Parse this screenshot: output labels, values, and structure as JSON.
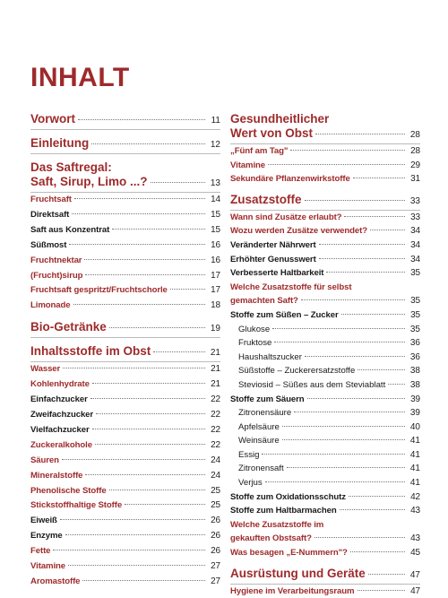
{
  "title": "INHALT",
  "columns": [
    {
      "chapters": [
        {
          "lines": [
            "Vorwort"
          ],
          "page": "11",
          "items": []
        },
        {
          "lines": [
            "Einleitung"
          ],
          "page": "12",
          "items": []
        },
        {
          "lines": [
            "Das Saftregal:",
            "Saft, Sirup, Limo ...?"
          ],
          "page": "13",
          "items": [
            {
              "text": "Fruchtsaft",
              "page": "14",
              "color": "#9e2a2b"
            },
            {
              "text": "Direktsaft",
              "page": "15",
              "color": "#1a1a1a"
            },
            {
              "text": "Saft aus Konzentrat",
              "page": "15",
              "color": "#1a1a1a"
            },
            {
              "text": "Süßmost",
              "page": "16",
              "color": "#1a1a1a"
            },
            {
              "text": "Fruchtnektar",
              "page": "16",
              "color": "#9e2a2b"
            },
            {
              "text": "(Frucht)sirup",
              "page": "17",
              "color": "#9e2a2b"
            },
            {
              "text": "Fruchtsaft gespritzt/Fruchtschorle",
              "page": "17",
              "color": "#9e2a2b"
            },
            {
              "text": "Limonade",
              "page": "18",
              "color": "#9e2a2b"
            }
          ]
        },
        {
          "lines": [
            "Bio-Getränke"
          ],
          "page": "19",
          "items": []
        },
        {
          "lines": [
            "Inhaltsstoffe im Obst"
          ],
          "page": "21",
          "items": [
            {
              "text": "Wasser",
              "page": "21",
              "color": "#9e2a2b"
            },
            {
              "text": "Kohlenhydrate",
              "page": "21",
              "color": "#9e2a2b"
            },
            {
              "text": "Einfachzucker",
              "page": "22",
              "color": "#1a1a1a"
            },
            {
              "text": "Zweifachzucker",
              "page": "22",
              "color": "#1a1a1a"
            },
            {
              "text": "Vielfachzucker",
              "page": "22",
              "color": "#1a1a1a"
            },
            {
              "text": "Zuckeralkohole",
              "page": "22",
              "color": "#9e2a2b"
            },
            {
              "text": "Säuren",
              "page": "24",
              "color": "#9e2a2b"
            },
            {
              "text": "Mineralstoffe",
              "page": "24",
              "color": "#9e2a2b"
            },
            {
              "text": "Phenolische Stoffe",
              "page": "25",
              "color": "#9e2a2b"
            },
            {
              "text": "Stickstoffhaltige Stoffe",
              "page": "25",
              "color": "#9e2a2b"
            },
            {
              "text": "Eiweiß",
              "page": "26",
              "color": "#1a1a1a"
            },
            {
              "text": "Enzyme",
              "page": "26",
              "color": "#1a1a1a"
            },
            {
              "text": "Fette",
              "page": "26",
              "color": "#9e2a2b"
            },
            {
              "text": "Vitamine",
              "page": "27",
              "color": "#9e2a2b"
            },
            {
              "text": "Aromastoffe",
              "page": "27",
              "color": "#9e2a2b"
            }
          ]
        }
      ]
    },
    {
      "chapters": [
        {
          "lines": [
            "Gesundheitlicher",
            "Wert von Obst"
          ],
          "page": "28",
          "items": [
            {
              "text": "„Fünf am Tag\"",
              "page": "28",
              "color": "#9e2a2b"
            },
            {
              "text": "Vitamine",
              "page": "29",
              "color": "#9e2a2b"
            },
            {
              "text": "Sekundäre Pflanzenwirkstoffe",
              "page": "31",
              "color": "#9e2a2b"
            }
          ]
        },
        {
          "lines": [
            "Zusatzstoffe"
          ],
          "page": "33",
          "items": [
            {
              "text": "Wann sind Zusätze erlaubt?",
              "page": "33",
              "color": "#9e2a2b"
            },
            {
              "text": "Wozu werden Zusätze verwendet?",
              "page": "34",
              "color": "#9e2a2b"
            },
            {
              "text": "Veränderter Nährwert",
              "page": "34",
              "color": "#1a1a1a"
            },
            {
              "text": "Erhöhter Genusswert",
              "page": "34",
              "color": "#1a1a1a"
            },
            {
              "text": "Verbesserte Haltbarkeit",
              "page": "35",
              "color": "#1a1a1a"
            },
            {
              "lines": [
                "Welche Zusatzstoffe für selbst",
                "gemachten Saft?"
              ],
              "page": "35",
              "color": "#9e2a2b"
            },
            {
              "text": "Stoffe zum Süßen – Zucker",
              "page": "35",
              "color": "#1a1a1a",
              "subitems": [
                {
                  "text": "Glukose",
                  "page": "35"
                },
                {
                  "text": "Fruktose",
                  "page": "36"
                },
                {
                  "text": "Haushaltszucker",
                  "page": "36"
                },
                {
                  "text": "Süßstoffe – Zuckerersatzstoffe",
                  "page": "38"
                },
                {
                  "text": "Steviosid – Süßes aus dem Steviablatt",
                  "page": "38"
                }
              ]
            },
            {
              "text": "Stoffe zum Säuern",
              "page": "39",
              "color": "#1a1a1a",
              "subitems": [
                {
                  "text": "Zitronensäure",
                  "page": "39"
                },
                {
                  "text": "Apfelsäure",
                  "page": "40"
                },
                {
                  "text": "Weinsäure",
                  "page": "41"
                },
                {
                  "text": "Essig",
                  "page": "41"
                },
                {
                  "text": "Zitronensaft",
                  "page": "41"
                },
                {
                  "text": "Verjus",
                  "page": "41"
                }
              ]
            },
            {
              "text": "Stoffe zum Oxidationsschutz",
              "page": "42",
              "color": "#1a1a1a"
            },
            {
              "text": "Stoffe zum Haltbarmachen",
              "page": "43",
              "color": "#1a1a1a"
            },
            {
              "lines": [
                "Welche Zusatzstoffe im",
                "gekauften Obstsaft?"
              ],
              "page": "43",
              "color": "#9e2a2b"
            },
            {
              "text": "Was besagen „E-Nummern\"?",
              "page": "45",
              "color": "#9e2a2b"
            }
          ]
        },
        {
          "lines": [
            "Ausrüstung und Geräte"
          ],
          "page": "47",
          "items": [
            {
              "text": "Hygiene im Verarbeitungsraum",
              "page": "47",
              "color": "#9e2a2b"
            }
          ]
        }
      ]
    }
  ]
}
